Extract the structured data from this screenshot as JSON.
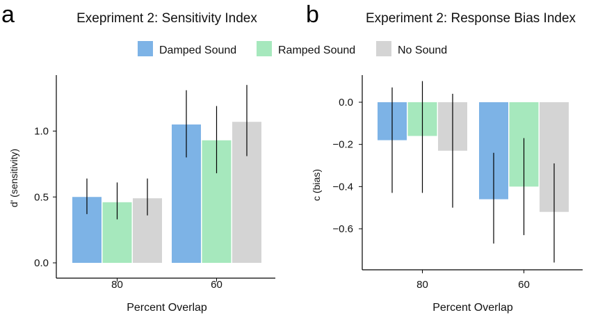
{
  "colors": {
    "damped": "#7db3e6",
    "ramped": "#a6e8bd",
    "none": "#d4d4d4",
    "axis": "#000000",
    "error": "#000000"
  },
  "legend": [
    {
      "name": "Damped Sound",
      "color_key": "damped"
    },
    {
      "name": "Ramped Sound",
      "color_key": "ramped"
    },
    {
      "name": "No Sound",
      "color_key": "none"
    }
  ],
  "chart_data": [
    {
      "panel": "a",
      "type": "bar",
      "title": "Exepriment 2: Sensitivity Index",
      "xlabel": "Percent Overlap",
      "ylabel": "d' (sensitivity)",
      "categories": [
        "80",
        "60"
      ],
      "ylim": [
        0.0,
        1.42
      ],
      "yticks": [
        0.0,
        0.5,
        1.0
      ],
      "ytick_labels": [
        "0.0",
        "0.5",
        "1.0"
      ],
      "series": [
        {
          "name": "Damped Sound",
          "values": [
            0.5,
            1.05
          ],
          "err_low": [
            0.37,
            0.8
          ],
          "err_high": [
            0.64,
            1.31
          ]
        },
        {
          "name": "Ramped Sound",
          "values": [
            0.46,
            0.93
          ],
          "err_low": [
            0.33,
            0.68
          ],
          "err_high": [
            0.61,
            1.19
          ]
        },
        {
          "name": "No Sound",
          "values": [
            0.49,
            1.07
          ],
          "err_low": [
            0.36,
            0.81
          ],
          "err_high": [
            0.64,
            1.35
          ]
        }
      ]
    },
    {
      "panel": "b",
      "type": "bar",
      "title": "Experiment 2: Response Bias Index",
      "xlabel": "Percent Overlap",
      "ylabel": "c (bias)",
      "categories": [
        "80",
        "60"
      ],
      "ylim": [
        -0.8,
        0.15
      ],
      "yticks": [
        0.0,
        -0.2,
        -0.4,
        -0.6
      ],
      "ytick_labels": [
        "0.0",
        "−0.2",
        "−0.4",
        "−0.6"
      ],
      "series": [
        {
          "name": "Damped Sound",
          "values": [
            -0.18,
            -0.46
          ],
          "err_low": [
            -0.43,
            -0.67
          ],
          "err_high": [
            0.07,
            -0.24
          ]
        },
        {
          "name": "Ramped Sound",
          "values": [
            -0.16,
            -0.4
          ],
          "err_low": [
            -0.43,
            -0.63
          ],
          "err_high": [
            0.1,
            -0.17
          ]
        },
        {
          "name": "No Sound",
          "values": [
            -0.23,
            -0.52
          ],
          "err_low": [
            -0.5,
            -0.76
          ],
          "err_high": [
            0.04,
            -0.29
          ]
        }
      ]
    }
  ]
}
